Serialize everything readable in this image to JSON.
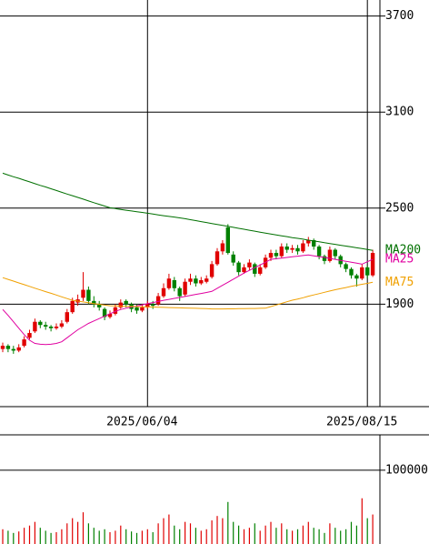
{
  "chart_data": {
    "type": "candlestick",
    "categories": [
      null,
      null,
      null,
      null,
      null,
      null,
      null,
      null,
      null,
      null,
      null,
      null,
      null,
      null,
      null,
      null,
      null,
      null,
      null,
      null,
      null,
      null,
      null,
      null,
      null,
      null,
      null,
      "2025/06/04",
      null,
      null,
      null,
      null,
      null,
      null,
      null,
      null,
      null,
      null,
      null,
      null,
      null,
      null,
      null,
      null,
      null,
      null,
      null,
      null,
      null,
      null,
      null,
      null,
      null,
      null,
      null,
      null,
      null,
      null,
      null,
      null,
      null,
      null,
      null,
      null,
      null,
      null,
      null,
      null,
      "2025/08/15",
      null
    ],
    "candles": [
      [
        1620,
        1660,
        1600,
        1640
      ],
      [
        1640,
        1650,
        1600,
        1620
      ],
      [
        1620,
        1640,
        1590,
        1610
      ],
      [
        1610,
        1650,
        1600,
        1630
      ],
      [
        1640,
        1700,
        1630,
        1680
      ],
      [
        1690,
        1740,
        1680,
        1720
      ],
      [
        1730,
        1810,
        1720,
        1790
      ],
      [
        1790,
        1800,
        1750,
        1770
      ],
      [
        1770,
        1790,
        1740,
        1760
      ],
      [
        1760,
        1770,
        1730,
        1750
      ],
      [
        1750,
        1780,
        1740,
        1760
      ],
      [
        1760,
        1800,
        1750,
        1780
      ],
      [
        1790,
        1870,
        1780,
        1850
      ],
      [
        1850,
        1940,
        1840,
        1920
      ],
      [
        1910,
        1960,
        1890,
        1930
      ],
      [
        1940,
        2100,
        1920,
        1990
      ],
      [
        1990,
        2010,
        1900,
        1920
      ],
      [
        1920,
        1950,
        1880,
        1900
      ],
      [
        1900,
        1920,
        1860,
        1880
      ],
      [
        1870,
        1880,
        1800,
        1820
      ],
      [
        1820,
        1860,
        1810,
        1840
      ],
      [
        1840,
        1900,
        1830,
        1880
      ],
      [
        1880,
        1930,
        1870,
        1910
      ],
      [
        1920,
        1930,
        1880,
        1900
      ],
      [
        1900,
        1910,
        1850,
        1870
      ],
      [
        1880,
        1900,
        1840,
        1860
      ],
      [
        1860,
        1900,
        1850,
        1880
      ],
      [
        1880,
        1920,
        1870,
        1900
      ],
      [
        1900,
        1920,
        1870,
        1890
      ],
      [
        1900,
        1970,
        1890,
        1950
      ],
      [
        1950,
        2030,
        1940,
        2000
      ],
      [
        2000,
        2090,
        1990,
        2060
      ],
      [
        2050,
        2070,
        1980,
        2000
      ],
      [
        2000,
        2010,
        1920,
        1950
      ],
      [
        1960,
        2060,
        1950,
        2040
      ],
      [
        2040,
        2090,
        2020,
        2060
      ],
      [
        2060,
        2080,
        2010,
        2030
      ],
      [
        2030,
        2070,
        2020,
        2050
      ],
      [
        2040,
        2080,
        2030,
        2060
      ],
      [
        2070,
        2170,
        2060,
        2150
      ],
      [
        2150,
        2250,
        2140,
        2230
      ],
      [
        2230,
        2300,
        2210,
        2280
      ],
      [
        2380,
        2400,
        2210,
        2220
      ],
      [
        2210,
        2230,
        2140,
        2160
      ],
      [
        2160,
        2170,
        2080,
        2100
      ],
      [
        2100,
        2150,
        2090,
        2130
      ],
      [
        2130,
        2180,
        2110,
        2160
      ],
      [
        2150,
        2160,
        2070,
        2090
      ],
      [
        2090,
        2150,
        2080,
        2130
      ],
      [
        2130,
        2210,
        2120,
        2190
      ],
      [
        2190,
        2240,
        2170,
        2220
      ],
      [
        2220,
        2240,
        2180,
        2200
      ],
      [
        2200,
        2280,
        2190,
        2260
      ],
      [
        2260,
        2280,
        2220,
        2240
      ],
      [
        2240,
        2270,
        2220,
        2250
      ],
      [
        2250,
        2270,
        2210,
        2230
      ],
      [
        2230,
        2300,
        2220,
        2280
      ],
      [
        2280,
        2320,
        2260,
        2300
      ],
      [
        2300,
        2310,
        2240,
        2260
      ],
      [
        2260,
        2270,
        2180,
        2200
      ],
      [
        2200,
        2210,
        2150,
        2170
      ],
      [
        2170,
        2260,
        2160,
        2240
      ],
      [
        2240,
        2250,
        2180,
        2200
      ],
      [
        2200,
        2210,
        2130,
        2150
      ],
      [
        2150,
        2160,
        2100,
        2120
      ],
      [
        2120,
        2130,
        2060,
        2080
      ],
      [
        2080,
        2090,
        2010,
        2060
      ],
      [
        2060,
        2150,
        2050,
        2130
      ],
      [
        2130,
        2140,
        2060,
        2080
      ],
      [
        2080,
        2240,
        2070,
        2220
      ]
    ],
    "up_color": "#e00000",
    "down_color": "#008000",
    "series": [
      {
        "name": "MA200",
        "color": "#007000",
        "values": [
          2718,
          2707,
          2696,
          2686,
          2675,
          2664,
          2653,
          2642,
          2632,
          2621,
          2610,
          2599,
          2588,
          2578,
          2567,
          2556,
          2545,
          2534,
          2524,
          2513,
          2502,
          2497,
          2492,
          2487,
          2482,
          2478,
          2473,
          2468,
          2463,
          2458,
          2453,
          2448,
          2444,
          2439,
          2434,
          2428,
          2422,
          2416,
          2410,
          2404,
          2398,
          2392,
          2386,
          2380,
          2374,
          2368,
          2362,
          2356,
          2350,
          2344,
          2338,
          2332,
          2327,
          2322,
          2316,
          2311,
          2306,
          2300,
          2295,
          2290,
          2284,
          2279,
          2274,
          2268,
          2263,
          2258,
          2252,
          2247,
          2242,
          2236
        ]
      },
      {
        "name": "MA25",
        "color": "#e000a0",
        "values": [
          1867,
          1830,
          1790,
          1750,
          1710,
          1675,
          1655,
          1650,
          1648,
          1650,
          1655,
          1665,
          1690,
          1715,
          1740,
          1760,
          1780,
          1795,
          1810,
          1825,
          1840,
          1855,
          1867,
          1875,
          1882,
          1889,
          1896,
          1903,
          1910,
          1917,
          1924,
          1930,
          1936,
          1942,
          1948,
          1955,
          1961,
          1967,
          1973,
          1980,
          1999,
          2018,
          2037,
          2056,
          2075,
          2094,
          2111,
          2128,
          2145,
          2162,
          2180,
          2184,
          2188,
          2192,
          2196,
          2200,
          2204,
          2207,
          2202,
          2197,
          2192,
          2186,
          2180,
          2174,
          2168,
          2162,
          2156,
          2150,
          2165,
          2180
        ]
      },
      {
        "name": "MA75",
        "color": "#f0a000",
        "values": [
          2066,
          2055,
          2044,
          2033,
          2022,
          2011,
          2000,
          1989,
          1978,
          1968,
          1957,
          1946,
          1935,
          1924,
          1919,
          1914,
          1909,
          1904,
          1899,
          1894,
          1890,
          1889,
          1888,
          1887,
          1886,
          1885,
          1884,
          1883,
          1882,
          1881,
          1880,
          1879,
          1878,
          1877,
          1876,
          1875,
          1874,
          1873,
          1872,
          1870,
          1870,
          1870,
          1871,
          1871,
          1872,
          1872,
          1873,
          1873,
          1874,
          1875,
          1885,
          1895,
          1905,
          1915,
          1925,
          1932,
          1940,
          1950,
          1958,
          1966,
          1974,
          1982,
          1990,
          1997,
          2004,
          2011,
          2018,
          2024,
          2030,
          2037
        ]
      }
    ],
    "ylim": [
      1260,
      3800
    ],
    "yticks": [
      1900,
      2500,
      3100,
      3700
    ],
    "grid": true,
    "volume": {
      "values": [
        20000,
        18000,
        15000,
        17000,
        22000,
        25000,
        30000,
        22000,
        18000,
        15000,
        16000,
        20000,
        28000,
        35000,
        30000,
        43000,
        28000,
        22000,
        18000,
        20000,
        16000,
        18000,
        25000,
        20000,
        17000,
        15000,
        18000,
        20000,
        16000,
        28000,
        35000,
        40000,
        25000,
        20000,
        30000,
        28000,
        22000,
        18000,
        20000,
        32000,
        38000,
        35000,
        57000,
        30000,
        25000,
        20000,
        22000,
        28000,
        18000,
        25000,
        30000,
        22000,
        28000,
        20000,
        18000,
        20000,
        25000,
        30000,
        22000,
        20000,
        15000,
        28000,
        22000,
        18000,
        20000,
        30000,
        25000,
        62000,
        35000,
        40000
      ],
      "ylim": [
        0,
        148000
      ],
      "yticks": [
        100000
      ]
    }
  }
}
